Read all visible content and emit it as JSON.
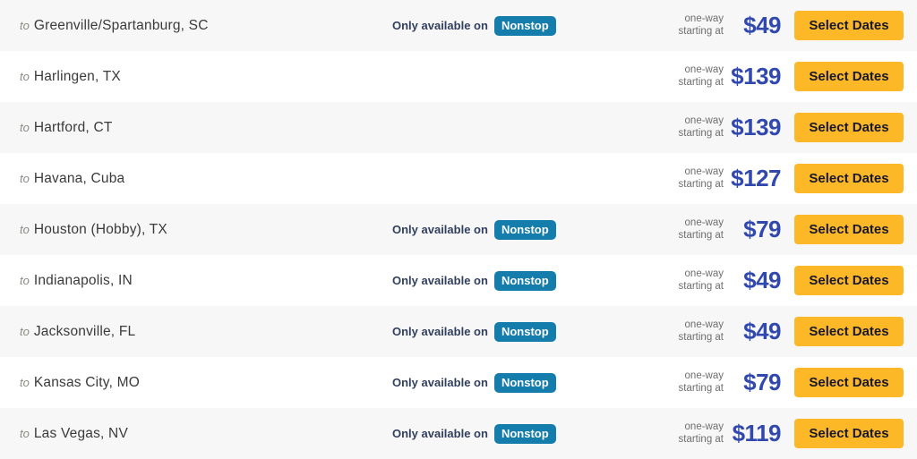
{
  "labels": {
    "to": "to",
    "only_available_on": "Only available on",
    "nonstop": "Nonstop",
    "fare_note_line1": "one-way",
    "fare_note_line2": "starting at",
    "select_dates": "Select Dates"
  },
  "colors": {
    "row_alt_bg": "#F7F7F7",
    "city_text": "#3A3A3A",
    "to_label": "#8A8A85",
    "avail_text_navy": "#32405F",
    "nonstop_badge_bg": "#157DAC",
    "nonstop_badge_text": "#FFFFFF",
    "fare_note_gray": "#6E6E6E",
    "price_blue": "#3148AE",
    "button_bg": "#FDB827",
    "button_text": "#17172F"
  },
  "rows": [
    {
      "city": "Greenville/Spartanburg, SC",
      "nonstop_only": true,
      "price": "$49"
    },
    {
      "city": "Harlingen, TX",
      "nonstop_only": false,
      "price": "$139"
    },
    {
      "city": "Hartford, CT",
      "nonstop_only": false,
      "price": "$139"
    },
    {
      "city": "Havana, Cuba",
      "nonstop_only": false,
      "price": "$127"
    },
    {
      "city": "Houston (Hobby), TX",
      "nonstop_only": true,
      "price": "$79"
    },
    {
      "city": "Indianapolis, IN",
      "nonstop_only": true,
      "price": "$49"
    },
    {
      "city": "Jacksonville, FL",
      "nonstop_only": true,
      "price": "$49"
    },
    {
      "city": "Kansas City, MO",
      "nonstop_only": true,
      "price": "$79"
    },
    {
      "city": "Las Vegas, NV",
      "nonstop_only": true,
      "price": "$119"
    }
  ]
}
